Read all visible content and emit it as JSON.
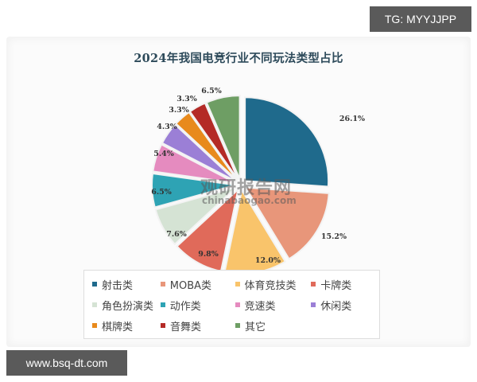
{
  "chart_data": {
    "type": "pie",
    "title": "2024年我国电竞行业不同玩法类型占比",
    "categories": [
      "射击类",
      "MOBA类",
      "体育竞技类",
      "卡牌类",
      "角色扮演类",
      "动作类",
      "竞速类",
      "休闲类",
      "棋牌类",
      "音舞类",
      "其它"
    ],
    "values": [
      26.1,
      15.2,
      12.0,
      9.8,
      7.6,
      6.5,
      5.4,
      4.3,
      3.3,
      3.3,
      6.5
    ],
    "labels": [
      "26.1%",
      "15.2%",
      "12.0%",
      "9.8%",
      "7.6%",
      "6.5%",
      "5.4%",
      "4.3%",
      "3.3%",
      "3.3%",
      "6.5%"
    ],
    "colors": [
      "#1f6a8c",
      "#e8967a",
      "#f9c46b",
      "#e06a5a",
      "#d5e3d4",
      "#2ea3b4",
      "#e58bbf",
      "#9b7fd6",
      "#e88a1c",
      "#b42a26",
      "#6e9e64"
    ],
    "legend_position": "bottom",
    "exploded": true
  },
  "legend": {
    "rows": [
      [
        "射击类",
        "MOBA类",
        "体育竞技类",
        "卡牌类"
      ],
      [
        "角色扮演类",
        "动作类",
        "竞速类",
        "休闲类"
      ],
      [
        "棋牌类",
        "音舞类",
        "其它"
      ]
    ]
  },
  "watermark": {
    "cn": "观研报告网",
    "en": "chinabaogao.com"
  },
  "overlays": {
    "top_right": "TG: MYYJJPP",
    "bottom_left": "www.bsq-dt.com"
  }
}
